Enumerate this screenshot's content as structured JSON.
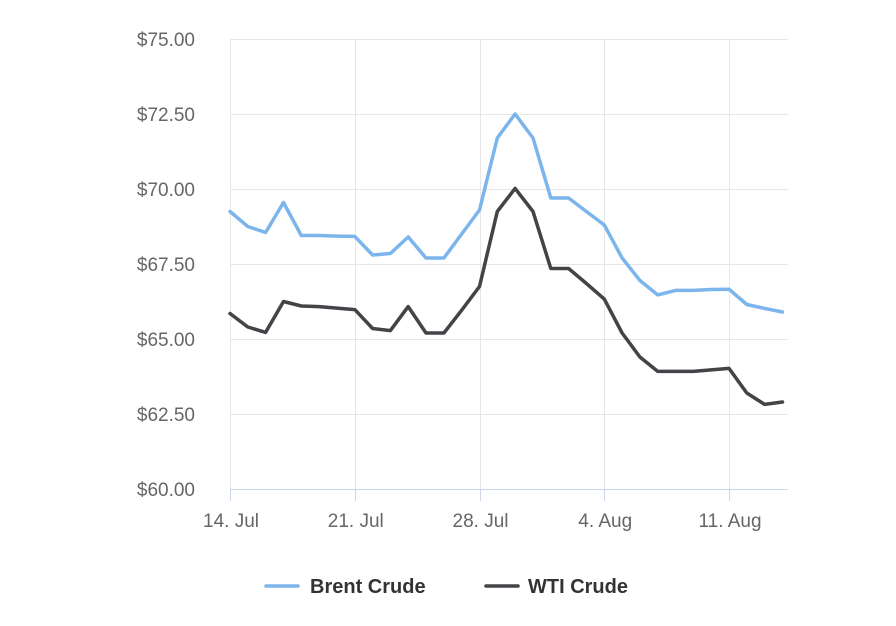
{
  "chart_data": {
    "type": "line",
    "title": "",
    "xlabel": "",
    "ylabel": "",
    "ylim": [
      60,
      75
    ],
    "y_ticks": [
      60,
      62.5,
      65,
      67.5,
      70,
      72.5,
      75
    ],
    "y_tick_labels": [
      "$60.00",
      "$62.50",
      "$65.00",
      "$67.50",
      "$70.00",
      "$72.50",
      "$75.00"
    ],
    "x_tick_days": [
      0,
      7,
      14,
      21,
      28
    ],
    "x_tick_labels": [
      "14. Jul",
      "21. Jul",
      "28. Jul",
      "4. Aug",
      "11. Aug"
    ],
    "x": [
      0,
      1,
      2,
      3,
      4,
      5,
      6,
      7,
      8,
      9,
      10,
      11,
      12,
      13,
      14,
      15,
      16,
      17,
      18,
      19,
      20,
      21,
      22,
      23,
      24,
      25,
      26,
      27,
      28,
      29,
      30,
      31
    ],
    "grid": true,
    "legend_position": "bottom",
    "series": [
      {
        "name": "Brent Crude",
        "color": "#7cb5ec",
        "values": [
          69.25,
          68.75,
          68.55,
          69.55,
          68.45,
          68.45,
          68.43,
          68.42,
          67.8,
          67.85,
          68.4,
          67.7,
          67.7,
          68.5,
          69.3,
          71.7,
          72.5,
          71.7,
          69.7,
          69.7,
          69.25,
          68.8,
          67.7,
          66.95,
          66.47,
          66.62,
          66.62,
          66.65,
          66.66,
          66.15,
          66.02,
          65.9
        ]
      },
      {
        "name": "WTI Crude",
        "color": "#434348",
        "values": [
          65.85,
          65.4,
          65.22,
          66.25,
          66.1,
          66.08,
          66.03,
          65.98,
          65.35,
          65.28,
          66.08,
          65.2,
          65.2,
          65.96,
          66.75,
          69.25,
          70.02,
          69.25,
          67.35,
          67.35,
          66.85,
          66.33,
          65.2,
          64.4,
          63.92,
          63.92,
          63.92,
          63.97,
          64.02,
          63.2,
          62.82,
          62.9
        ]
      }
    ]
  }
}
